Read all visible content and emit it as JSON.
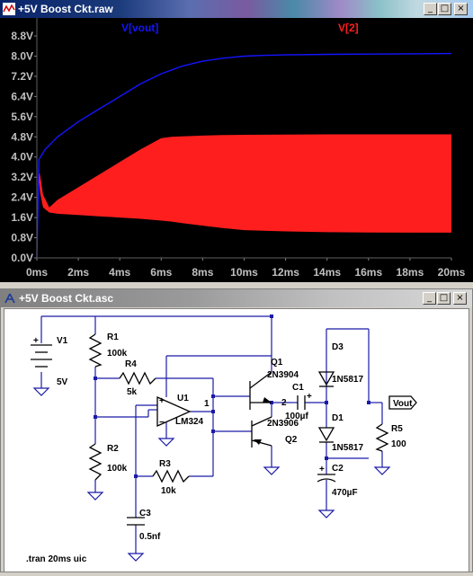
{
  "plot_window": {
    "title": "+5V Boost Ckt.raw",
    "controls": {
      "minimize": "_",
      "maximize": "□",
      "close": "×"
    },
    "colors": {
      "background": "#000000",
      "vout": "#1414ff",
      "v2": "#ff1e1e",
      "axis_text": "#c0c0c0"
    }
  },
  "chart_data": {
    "type": "line",
    "xlabel": "",
    "ylabel": "",
    "xlim": [
      0,
      20
    ],
    "ylim": [
      0,
      8.8
    ],
    "x_ticks": [
      "0ms",
      "2ms",
      "4ms",
      "6ms",
      "8ms",
      "10ms",
      "12ms",
      "14ms",
      "16ms",
      "18ms",
      "20ms"
    ],
    "y_ticks": [
      "0.0V",
      "0.8V",
      "1.6V",
      "2.4V",
      "3.2V",
      "4.0V",
      "4.8V",
      "5.6V",
      "6.4V",
      "7.2V",
      "8.0V",
      "8.8V"
    ],
    "series": [
      {
        "name": "V[vout]",
        "color": "#1414ff",
        "x": [
          0,
          0.1,
          0.4,
          1,
          2,
          3,
          4,
          5,
          6,
          7,
          8,
          9,
          10,
          11,
          12,
          14,
          16,
          18,
          20
        ],
        "y": [
          0,
          3.9,
          4.3,
          4.8,
          5.4,
          5.9,
          6.4,
          6.9,
          7.3,
          7.6,
          7.8,
          7.92,
          8.0,
          8.03,
          8.05,
          8.07,
          8.08,
          8.09,
          8.1
        ]
      },
      {
        "name": "V[2]",
        "color": "#ff1e1e",
        "type": "band",
        "x": [
          0,
          0.05,
          0.15,
          0.3,
          0.6,
          1,
          2,
          3,
          4,
          5,
          6,
          6.5,
          7,
          8,
          9,
          10,
          12,
          14,
          16,
          18,
          20
        ],
        "upper": [
          0.3,
          3.5,
          3.3,
          2.5,
          2.0,
          2.3,
          2.8,
          3.3,
          3.8,
          4.3,
          4.75,
          4.8,
          4.82,
          4.85,
          4.87,
          4.88,
          4.89,
          4.9,
          4.9,
          4.9,
          4.9
        ],
        "lower": [
          0.3,
          3.5,
          2.6,
          2.0,
          1.8,
          1.75,
          1.7,
          1.65,
          1.6,
          1.55,
          1.48,
          1.44,
          1.38,
          1.28,
          1.18,
          1.1,
          1.05,
          1.02,
          1.01,
          1.0,
          1.0
        ]
      }
    ]
  },
  "schematic_window": {
    "title": "+5V Boost Ckt.asc",
    "controls": {
      "minimize": "_",
      "maximize": "□",
      "close": "×"
    },
    "labels": {
      "v1": "V1",
      "v1_value": "5V",
      "r1": "R1",
      "r1_value": "100k",
      "r2": "R2",
      "r2_value": "100k",
      "r3": "R3",
      "r3_value": "10k",
      "r4": "R4",
      "r4_value": "5k",
      "r5": "R5",
      "r5_value": "100",
      "u1": "U1",
      "u1_value": "LM324",
      "u1_pin": "1",
      "q1": "Q1",
      "q1_value": "2N3904",
      "q2": "Q2",
      "q2_value": "2N3906",
      "node2": "2",
      "c1": "C1",
      "c1_value": "100µf",
      "c2": "C2",
      "c2_value": "470µF",
      "c3": "C3",
      "c3_value": "0.5nf",
      "d1": "D1",
      "d1_value": "1N5817",
      "d3": "D3",
      "d3_value": "1N5817",
      "vout_flag": "Vout",
      "directive": ".tran 20ms uic",
      "plus": "+",
      "minus": "−"
    }
  }
}
